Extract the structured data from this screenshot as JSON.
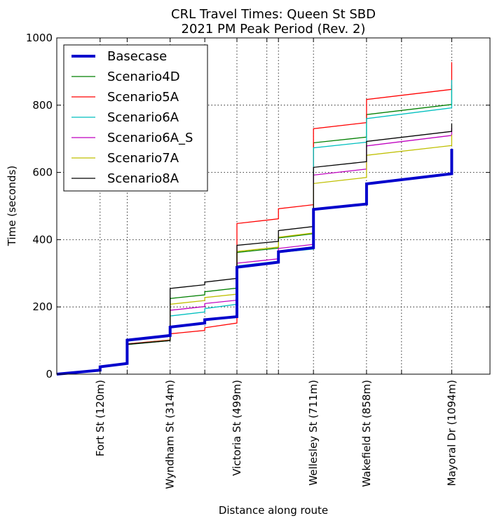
{
  "chart_data": {
    "type": "line",
    "title": "CRL Travel Times: Queen St SBD",
    "subtitle": "2021 PM Peak Period (Rev. 2)",
    "xlabel": "Distance along route",
    "ylabel": "Time (seconds)",
    "xlim": [
      0,
      1200
    ],
    "ylim": [
      0,
      1000
    ],
    "yticks": [
      0,
      200,
      400,
      600,
      800,
      1000
    ],
    "grid": true,
    "legend_position": "top-left",
    "station_ticks": [
      {
        "x": 120,
        "label": "Fort St (120m)"
      },
      {
        "x": 314,
        "label": "Wyndham St (314m)"
      },
      {
        "x": 499,
        "label": "Victoria St (499m)"
      },
      {
        "x": 711,
        "label": "Wellesley St (711m)"
      },
      {
        "x": 858,
        "label": "Wakefield St (858m)"
      },
      {
        "x": 1094,
        "label": "Mayoral Dr (1094m)"
      }
    ],
    "minor_gridlines_x": [
      195,
      410,
      582,
      614,
      955
    ],
    "series": [
      {
        "name": "Basecase",
        "color": "#0000cc",
        "width": 4,
        "points": [
          [
            0,
            0
          ],
          [
            120,
            12
          ],
          [
            120,
            22
          ],
          [
            195,
            32
          ],
          [
            195,
            101
          ],
          [
            314,
            115
          ],
          [
            314,
            140
          ],
          [
            410,
            152
          ],
          [
            410,
            162
          ],
          [
            499,
            171
          ],
          [
            499,
            318
          ],
          [
            614,
            333
          ],
          [
            614,
            364
          ],
          [
            711,
            376
          ],
          [
            711,
            490
          ],
          [
            858,
            506
          ],
          [
            858,
            566
          ],
          [
            1094,
            596
          ],
          [
            1094,
            670
          ]
        ]
      },
      {
        "name": "Scenario4D",
        "color": "#007f00",
        "width": 1.3,
        "points": [
          [
            0,
            0
          ],
          [
            120,
            13
          ],
          [
            120,
            23
          ],
          [
            195,
            32
          ],
          [
            195,
            88
          ],
          [
            314,
            100
          ],
          [
            314,
            225
          ],
          [
            410,
            236
          ],
          [
            410,
            245
          ],
          [
            499,
            256
          ],
          [
            499,
            362
          ],
          [
            614,
            375
          ],
          [
            614,
            405
          ],
          [
            711,
            418
          ],
          [
            711,
            688
          ],
          [
            858,
            705
          ],
          [
            858,
            772
          ],
          [
            1094,
            802
          ],
          [
            1094,
            860
          ]
        ]
      },
      {
        "name": "Scenario5A",
        "color": "#ff0000",
        "width": 1.3,
        "points": [
          [
            0,
            0
          ],
          [
            120,
            13
          ],
          [
            120,
            24
          ],
          [
            195,
            33
          ],
          [
            195,
            90
          ],
          [
            314,
            102
          ],
          [
            314,
            120
          ],
          [
            410,
            130
          ],
          [
            410,
            138
          ],
          [
            499,
            152
          ],
          [
            499,
            448
          ],
          [
            614,
            462
          ],
          [
            614,
            492
          ],
          [
            711,
            504
          ],
          [
            711,
            730
          ],
          [
            858,
            748
          ],
          [
            858,
            817
          ],
          [
            1094,
            847
          ],
          [
            1094,
            928
          ]
        ]
      },
      {
        "name": "Scenario6A",
        "color": "#00bfbf",
        "width": 1.3,
        "points": [
          [
            0,
            0
          ],
          [
            120,
            13
          ],
          [
            120,
            23
          ],
          [
            195,
            32
          ],
          [
            195,
            89
          ],
          [
            314,
            101
          ],
          [
            314,
            173
          ],
          [
            410,
            185
          ],
          [
            410,
            195
          ],
          [
            499,
            208
          ],
          [
            499,
            322
          ],
          [
            614,
            336
          ],
          [
            614,
            362
          ],
          [
            711,
            372
          ],
          [
            711,
            673
          ],
          [
            858,
            690
          ],
          [
            858,
            760
          ],
          [
            1094,
            792
          ],
          [
            1094,
            875
          ]
        ]
      },
      {
        "name": "Scenario6A_S",
        "color": "#bf00bf",
        "width": 1.3,
        "points": [
          [
            0,
            0
          ],
          [
            120,
            13
          ],
          [
            120,
            23
          ],
          [
            195,
            32
          ],
          [
            195,
            89
          ],
          [
            314,
            101
          ],
          [
            314,
            190
          ],
          [
            410,
            201
          ],
          [
            410,
            210
          ],
          [
            499,
            220
          ],
          [
            499,
            330
          ],
          [
            614,
            343
          ],
          [
            614,
            374
          ],
          [
            711,
            386
          ],
          [
            711,
            592
          ],
          [
            858,
            610
          ],
          [
            858,
            679
          ],
          [
            1094,
            710
          ],
          [
            1094,
            732
          ]
        ]
      },
      {
        "name": "Scenario7A",
        "color": "#bfbf00",
        "width": 1.3,
        "points": [
          [
            0,
            0
          ],
          [
            120,
            13
          ],
          [
            120,
            23
          ],
          [
            195,
            32
          ],
          [
            195,
            89
          ],
          [
            314,
            101
          ],
          [
            314,
            208
          ],
          [
            410,
            219
          ],
          [
            410,
            228
          ],
          [
            499,
            238
          ],
          [
            499,
            365
          ],
          [
            614,
            378
          ],
          [
            614,
            407
          ],
          [
            711,
            420
          ],
          [
            711,
            567
          ],
          [
            858,
            585
          ],
          [
            858,
            651
          ],
          [
            1094,
            680
          ],
          [
            1094,
            712
          ]
        ]
      },
      {
        "name": "Scenario8A",
        "color": "#000000",
        "width": 1.3,
        "points": [
          [
            0,
            0
          ],
          [
            120,
            13
          ],
          [
            120,
            23
          ],
          [
            195,
            32
          ],
          [
            195,
            89
          ],
          [
            314,
            100
          ],
          [
            314,
            255
          ],
          [
            410,
            266
          ],
          [
            410,
            274
          ],
          [
            499,
            285
          ],
          [
            499,
            383
          ],
          [
            614,
            395
          ],
          [
            614,
            427
          ],
          [
            711,
            439
          ],
          [
            711,
            615
          ],
          [
            858,
            632
          ],
          [
            858,
            692
          ],
          [
            1094,
            722
          ],
          [
            1094,
            745
          ]
        ]
      }
    ]
  }
}
